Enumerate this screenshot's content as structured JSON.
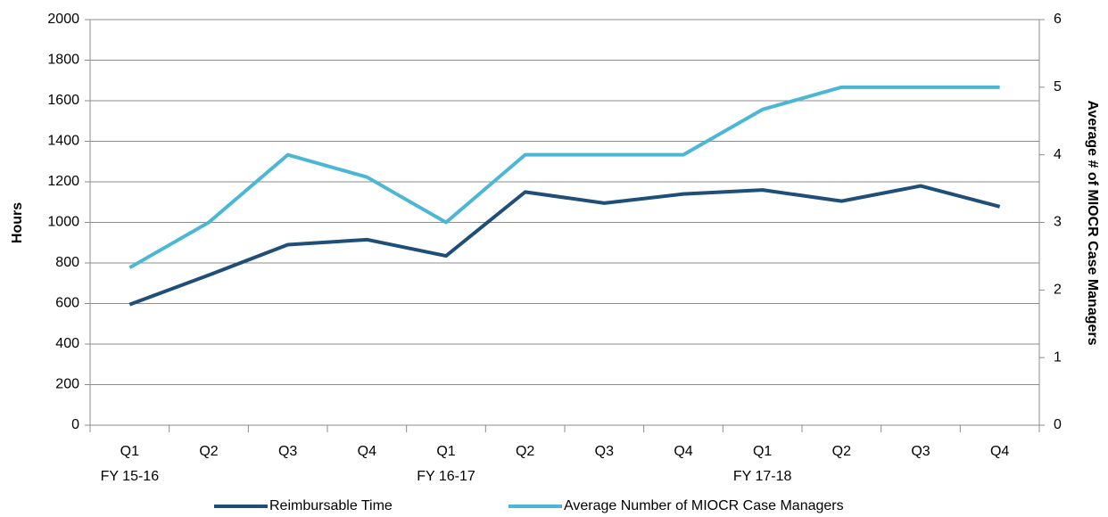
{
  "chart_data": {
    "type": "line",
    "categories": [
      "Q1",
      "Q2",
      "Q3",
      "Q4",
      "Q1",
      "Q2",
      "Q3",
      "Q4",
      "Q1",
      "Q2",
      "Q3",
      "Q4"
    ],
    "fiscal_years": [
      "FY 15-16",
      null,
      null,
      null,
      "FY 16-17",
      null,
      null,
      null,
      "FY 17-18",
      null,
      null,
      null
    ],
    "y_label": "Hours",
    "y2_label": "Average # of MIOCR Case Managers",
    "ylim": [
      0,
      2000
    ],
    "yticks": [
      0,
      200,
      400,
      600,
      800,
      1000,
      1200,
      1400,
      1600,
      1800,
      2000
    ],
    "y2lim": [
      0,
      6
    ],
    "y2ticks": [
      0,
      1,
      2,
      3,
      4,
      5,
      6
    ],
    "grid": true,
    "legend": "bottom",
    "series": [
      {
        "name": "Reimbursable Time",
        "color": "#1f4e79",
        "values": [
          595,
          740,
          890,
          915,
          835,
          1150,
          1095,
          1140,
          1160,
          1105,
          1180,
          1078
        ]
      },
      {
        "name": "Average Number of MIOCR Case Managers",
        "color": "#4bb7d4",
        "axis": "y2",
        "values": [
          2.33,
          3,
          4,
          3.67,
          3,
          4,
          4,
          4,
          4.67,
          5,
          5,
          5
        ]
      }
    ]
  }
}
